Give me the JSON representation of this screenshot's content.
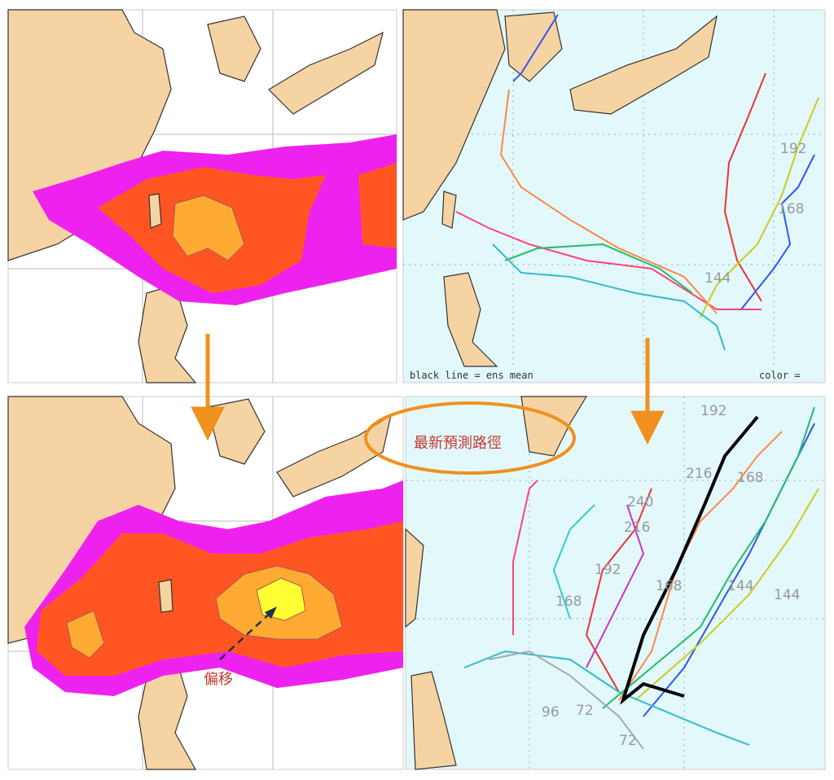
{
  "top_right": {
    "legend_left": "black line = ens mean",
    "legend_right": "color =",
    "track_labels": [
      "192",
      "168",
      "144"
    ]
  },
  "bottom_right": {
    "track_labels": [
      "192",
      "216",
      "168",
      "240",
      "216",
      "192",
      "168",
      "168",
      "144",
      "144",
      "96",
      "72",
      "72"
    ]
  },
  "annotations": {
    "callout": "最新預測路徑",
    "shift": "偏移"
  }
}
